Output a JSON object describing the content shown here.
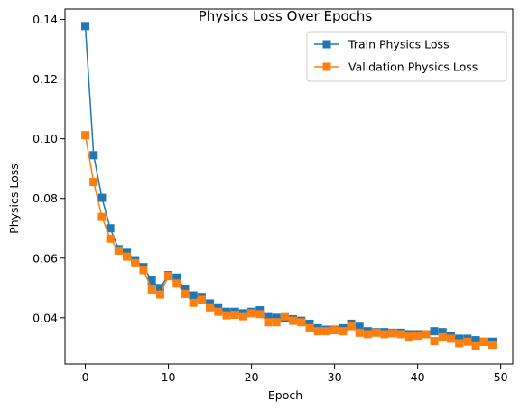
{
  "chart_data": {
    "type": "line",
    "title": "Physics Loss Over Epochs",
    "xlabel": "Epoch",
    "ylabel": "Physics Loss",
    "xlim": [
      -2.45,
      51.45
    ],
    "ylim": [
      0.0245,
      0.1435
    ],
    "x_ticks": [
      0,
      10,
      20,
      30,
      40,
      50
    ],
    "y_ticks": [
      0.04,
      0.06,
      0.08,
      0.1,
      0.12,
      0.14
    ],
    "x_tick_labels": [
      "0",
      "10",
      "20",
      "30",
      "40",
      "50"
    ],
    "y_tick_labels": [
      "0.04",
      "0.06",
      "0.08",
      "0.10",
      "0.12",
      "0.14"
    ],
    "grid": false,
    "legend_position": "top-right",
    "x": [
      0,
      1,
      2,
      3,
      4,
      5,
      6,
      7,
      8,
      9,
      10,
      11,
      12,
      13,
      14,
      15,
      16,
      17,
      18,
      19,
      20,
      21,
      22,
      23,
      24,
      25,
      26,
      27,
      28,
      29,
      30,
      31,
      32,
      33,
      34,
      35,
      36,
      37,
      38,
      39,
      40,
      41,
      42,
      43,
      44,
      45,
      46,
      47,
      48,
      49
    ],
    "series": [
      {
        "name": "Train Physics Loss",
        "color": "#1f77b4",
        "marker": "square",
        "values": [
          0.1378,
          0.0945,
          0.0802,
          0.07,
          0.063,
          0.0618,
          0.0593,
          0.057,
          0.0525,
          0.05,
          0.0543,
          0.0535,
          0.0495,
          0.0475,
          0.047,
          0.0448,
          0.0435,
          0.042,
          0.042,
          0.0415,
          0.042,
          0.0425,
          0.0405,
          0.04,
          0.04,
          0.0395,
          0.039,
          0.038,
          0.0365,
          0.036,
          0.036,
          0.0365,
          0.038,
          0.037,
          0.0355,
          0.0352,
          0.0352,
          0.035,
          0.035,
          0.0345,
          0.0345,
          0.0345,
          0.0355,
          0.0352,
          0.0338,
          0.033,
          0.033,
          0.0325,
          0.032,
          0.032
        ]
      },
      {
        "name": "Validation Physics Loss",
        "color": "#ff7f0e",
        "marker": "square",
        "values": [
          0.1012,
          0.0855,
          0.0738,
          0.0665,
          0.0625,
          0.0605,
          0.0583,
          0.056,
          0.0495,
          0.0478,
          0.054,
          0.0515,
          0.048,
          0.045,
          0.046,
          0.0435,
          0.042,
          0.0408,
          0.041,
          0.0405,
          0.0415,
          0.0412,
          0.0385,
          0.0385,
          0.0405,
          0.039,
          0.0385,
          0.0365,
          0.0355,
          0.0355,
          0.0358,
          0.0355,
          0.0372,
          0.035,
          0.0345,
          0.035,
          0.0345,
          0.0348,
          0.0345,
          0.0337,
          0.034,
          0.0345,
          0.0322,
          0.0335,
          0.033,
          0.0315,
          0.032,
          0.0305,
          0.032,
          0.031
        ]
      }
    ]
  }
}
